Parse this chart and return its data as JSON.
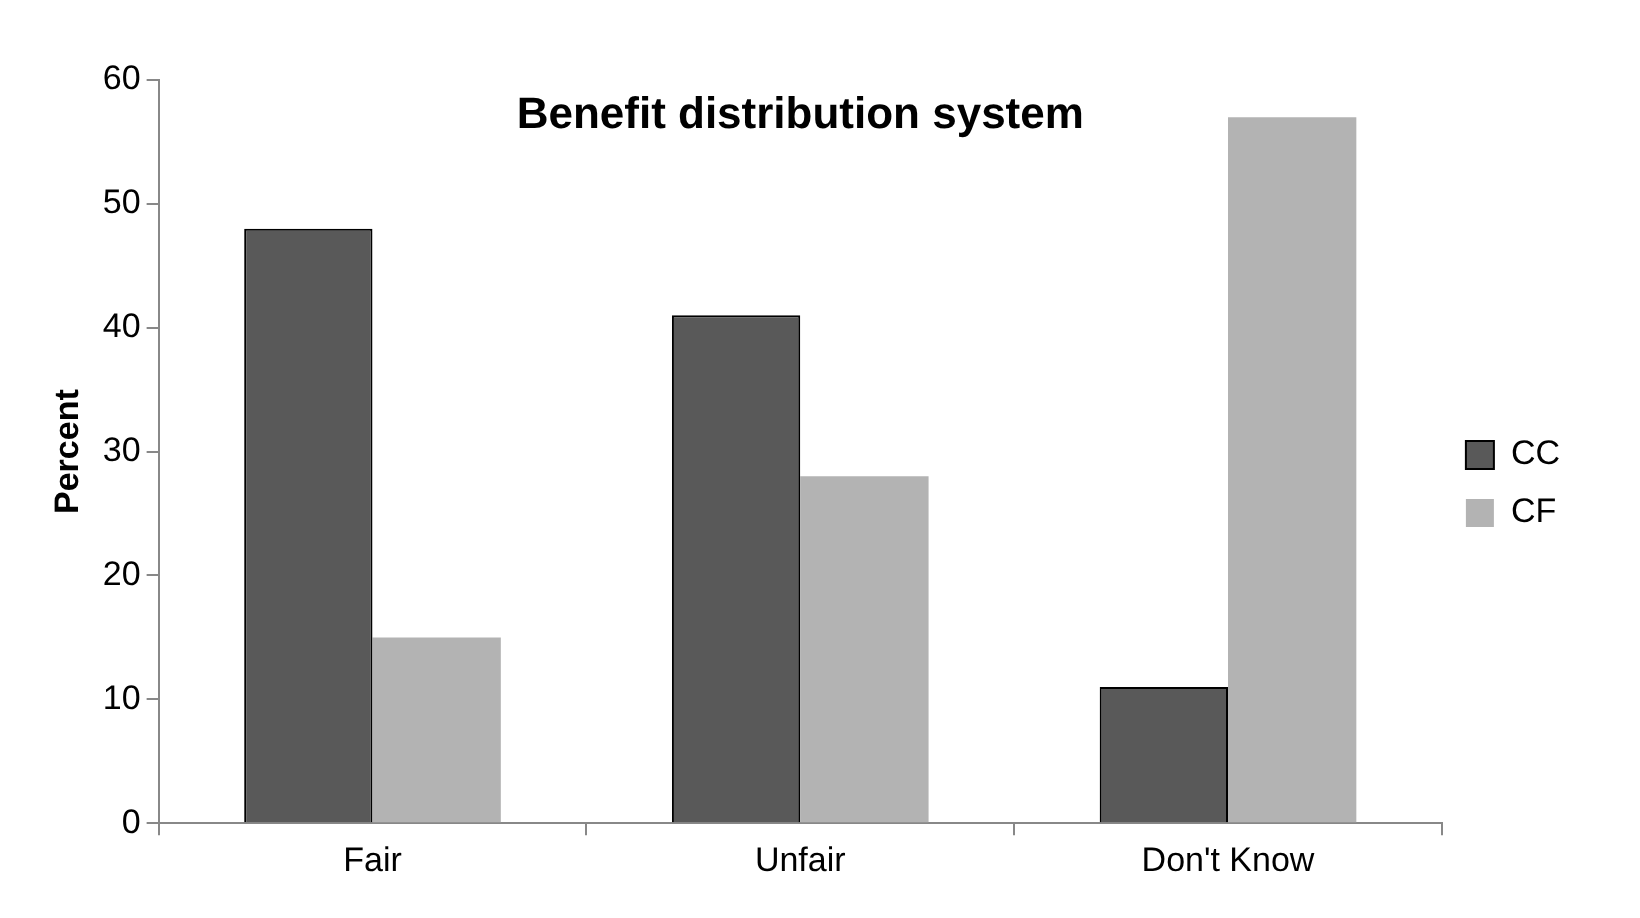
{
  "chart_data": {
    "type": "bar",
    "title": "Benefit distribution system",
    "ylabel": "Percent",
    "categories": [
      "Fair",
      "Unfair",
      "Don't Know"
    ],
    "series": [
      {
        "name": "CC",
        "color": "#595959",
        "values": [
          48,
          41,
          11
        ]
      },
      {
        "name": "CF",
        "color": "#b3b3b3",
        "values": [
          15,
          28,
          57
        ]
      }
    ],
    "ylim": [
      0,
      60
    ],
    "yticks": [
      0,
      10,
      20,
      30,
      40,
      50,
      60
    ],
    "grid": false,
    "legend": "right"
  }
}
